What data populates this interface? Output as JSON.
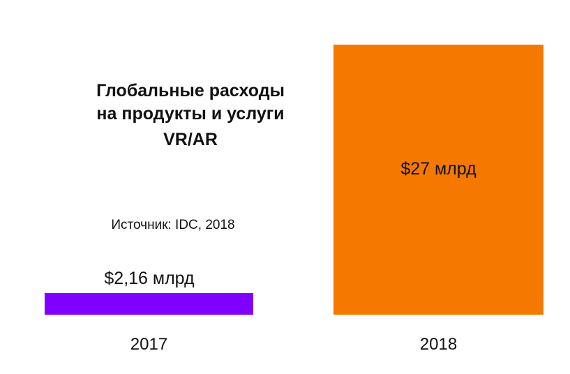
{
  "chart_data": {
    "type": "bar",
    "title_lines": [
      "Глобальные расходы",
      "на продукты и услуги",
      "VR/AR"
    ],
    "source": "Источник: IDC, 2018",
    "categories": [
      "2017",
      "2018"
    ],
    "values": [
      2.16,
      27
    ],
    "value_labels": [
      "$2,16 млрд",
      "$27 млрд"
    ],
    "colors": [
      "#8000ff",
      "#f57900"
    ],
    "xlabel": "",
    "ylabel": "",
    "grid": false,
    "legend": "none"
  }
}
